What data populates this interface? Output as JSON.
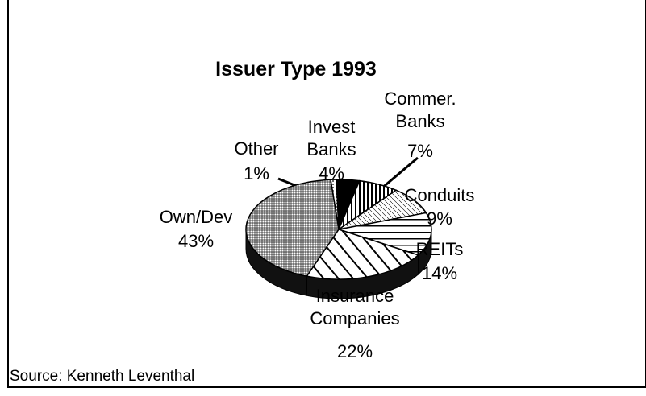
{
  "chart_data": {
    "type": "pie",
    "title": "Issuer Type 1993",
    "categories": [
      "Other",
      "Invest Banks",
      "Commer. Banks",
      "Conduits",
      "REITs",
      "Insurance Companies",
      "Own/Dev"
    ],
    "values": [
      1,
      4,
      7,
      9,
      14,
      22,
      43
    ],
    "value_labels": [
      "1%",
      "4%",
      "7%",
      "9%",
      "14%",
      "22%",
      "43%"
    ],
    "source": "Source: Kenneth Leventhal"
  }
}
